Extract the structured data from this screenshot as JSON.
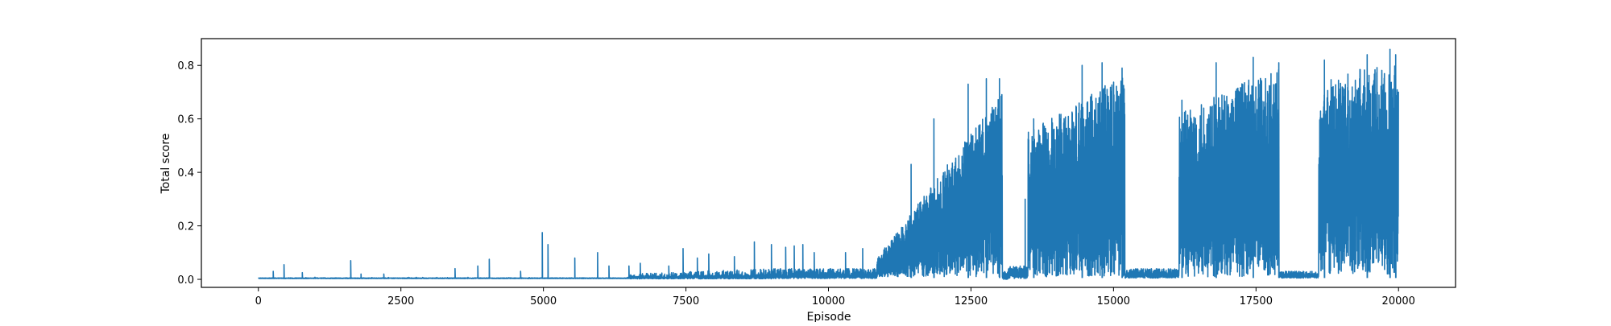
{
  "chart_data": {
    "type": "line",
    "title": "",
    "xlabel": "Episode",
    "ylabel": "Total score",
    "xlim": [
      -1000,
      21000
    ],
    "ylim": [
      -0.03,
      0.9
    ],
    "xticks": [
      0,
      2500,
      5000,
      7500,
      10000,
      12500,
      15000,
      17500,
      20000
    ],
    "xtick_labels": [
      "0",
      "2500",
      "5000",
      "7500",
      "10000",
      "12500",
      "15000",
      "17500",
      "20000"
    ],
    "yticks": [
      0.0,
      0.2,
      0.4,
      0.6,
      0.8
    ],
    "ytick_labels": [
      "0.0",
      "0.2",
      "0.4",
      "0.6",
      "0.8"
    ],
    "grid": false,
    "legend": "none",
    "series": [
      {
        "color": "#1f77b4",
        "n_episodes": 20000,
        "spikes": [
          [
            260,
            0.03
          ],
          [
            450,
            0.055
          ],
          [
            770,
            0.025
          ],
          [
            1620,
            0.07
          ],
          [
            1800,
            0.02
          ],
          [
            2200,
            0.02
          ],
          [
            3450,
            0.04
          ],
          [
            3850,
            0.05
          ],
          [
            4050,
            0.075
          ],
          [
            4600,
            0.03
          ],
          [
            4980,
            0.175
          ],
          [
            5080,
            0.13
          ],
          [
            5550,
            0.08
          ],
          [
            5950,
            0.1
          ],
          [
            6150,
            0.05
          ],
          [
            6500,
            0.05
          ],
          [
            6700,
            0.06
          ],
          [
            7200,
            0.05
          ],
          [
            7450,
            0.115
          ],
          [
            7700,
            0.08
          ],
          [
            7900,
            0.095
          ],
          [
            8350,
            0.085
          ],
          [
            8700,
            0.14
          ],
          [
            9000,
            0.13
          ],
          [
            9250,
            0.12
          ],
          [
            9400,
            0.125
          ],
          [
            9550,
            0.13
          ],
          [
            9750,
            0.1
          ],
          [
            10300,
            0.1
          ],
          [
            10600,
            0.115
          ],
          [
            11450,
            0.43
          ],
          [
            11850,
            0.6
          ],
          [
            12450,
            0.73
          ],
          [
            12770,
            0.75
          ],
          [
            13000,
            0.75
          ],
          [
            13450,
            0.3
          ],
          [
            13600,
            0.6
          ],
          [
            14450,
            0.8
          ],
          [
            14800,
            0.81
          ],
          [
            15150,
            0.79
          ],
          [
            16200,
            0.67
          ],
          [
            16800,
            0.81
          ],
          [
            17450,
            0.83
          ],
          [
            17900,
            0.81
          ],
          [
            18700,
            0.82
          ],
          [
            19450,
            0.84
          ],
          [
            19850,
            0.86
          ],
          [
            19950,
            0.84
          ]
        ]
      }
    ]
  }
}
